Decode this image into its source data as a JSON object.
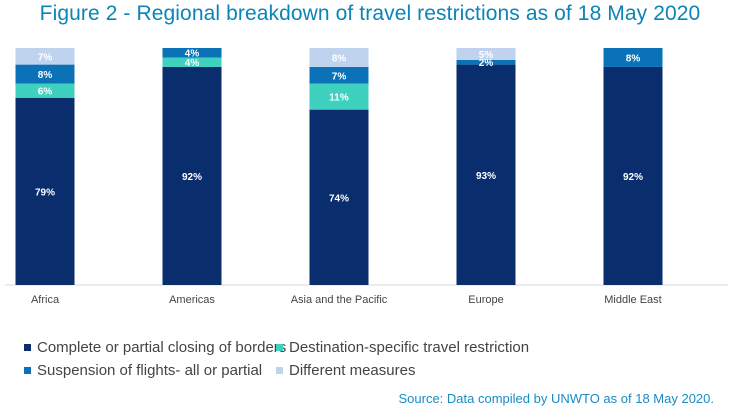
{
  "chart_data": {
    "type": "bar",
    "stacked": true,
    "title": "Figure 2 - Regional breakdown of travel restrictions as of 18 May 2020",
    "categories": [
      "Africa",
      "Americas",
      "Asia and the Pacific",
      "Europe",
      "Middle East"
    ],
    "ylim": [
      0,
      100
    ],
    "series": [
      {
        "name": "Complete or partial closing of borders",
        "color": "#0a2d6e",
        "values": [
          79,
          92,
          74,
          93,
          92
        ],
        "labels": [
          "79%",
          "92%",
          "74%",
          "93%",
          "92%"
        ]
      },
      {
        "name": "Destination-specific travel restriction",
        "color": "#3fd1c0",
        "values": [
          6,
          4,
          11,
          0,
          0
        ],
        "labels": [
          "6%",
          "4%",
          "11%",
          "",
          ""
        ]
      },
      {
        "name": "Suspension of flights- all or partial",
        "color": "#0b72b8",
        "values": [
          8,
          4,
          7,
          2,
          8
        ],
        "labels": [
          "8%",
          "4%",
          "7%",
          "2%",
          "8%"
        ]
      },
      {
        "name": "Different measures",
        "color": "#bfd3ee",
        "values": [
          7,
          0,
          8,
          5,
          0
        ],
        "labels": [
          "7%",
          "",
          "8%",
          "5%",
          ""
        ]
      }
    ],
    "source": "Source: Data compiled by UNWTO as of 18 May 2020."
  }
}
